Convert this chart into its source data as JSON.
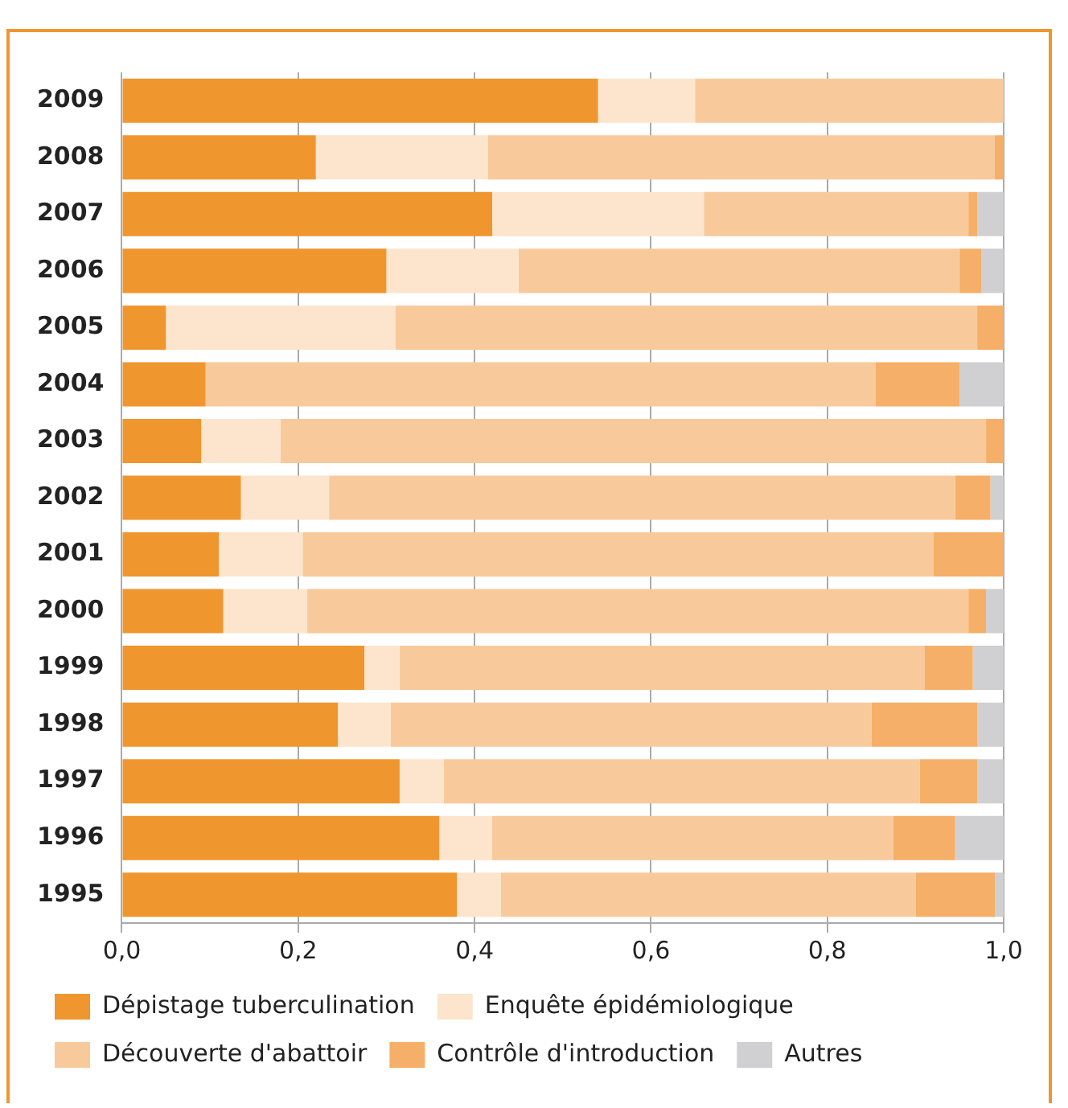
{
  "chart_data": {
    "type": "bar",
    "orientation": "horizontal",
    "stacked": true,
    "categories": [
      "2009",
      "2008",
      "2007",
      "2006",
      "2005",
      "2004",
      "2003",
      "2002",
      "2001",
      "2000",
      "1999",
      "1998",
      "1997",
      "1996",
      "1995"
    ],
    "series": [
      {
        "name": "Dépistage tuberculination",
        "color": "#f0962f",
        "values": [
          0.54,
          0.22,
          0.42,
          0.3,
          0.05,
          0.095,
          0.09,
          0.135,
          0.11,
          0.115,
          0.275,
          0.245,
          0.315,
          0.36,
          0.38
        ]
      },
      {
        "name": "Enquête épidémiologique",
        "color": "#fce5cc",
        "values": [
          0.11,
          0.195,
          0.24,
          0.15,
          0.26,
          0,
          0.09,
          0.1,
          0.095,
          0.095,
          0.04,
          0.06,
          0.05,
          0.06,
          0.05
        ]
      },
      {
        "name": "Découverte d'abattoir",
        "color": "#f8ca9b",
        "values": [
          0.35,
          0.575,
          0.3,
          0.5,
          0.66,
          0.76,
          0.8,
          0.71,
          0.715,
          0.75,
          0.595,
          0.545,
          0.54,
          0.455,
          0.47
        ]
      },
      {
        "name": "Contrôle d'introduction",
        "color": "#f5af68",
        "values": [
          0,
          0.01,
          0.01,
          0.025,
          0.03,
          0.095,
          0.02,
          0.04,
          0.08,
          0.02,
          0.055,
          0.12,
          0.065,
          0.07,
          0.09
        ]
      },
      {
        "name": "Autres",
        "color": "#d0d0d2",
        "values": [
          0,
          0,
          0.03,
          0.025,
          0,
          0.05,
          0,
          0.015,
          0,
          0.02,
          0.035,
          0.03,
          0.03,
          0.055,
          0.01
        ]
      }
    ],
    "xlim": [
      0,
      1
    ],
    "xticks": [
      {
        "value": 0,
        "label": "0,0"
      },
      {
        "value": 0.2,
        "label": "0,2"
      },
      {
        "value": 0.4,
        "label": "0,4"
      },
      {
        "value": 0.6,
        "label": "0,6"
      },
      {
        "value": 0.8,
        "label": "0,8"
      },
      {
        "value": 1,
        "label": "1,0"
      }
    ],
    "grid": "x",
    "legend": "bottom"
  }
}
